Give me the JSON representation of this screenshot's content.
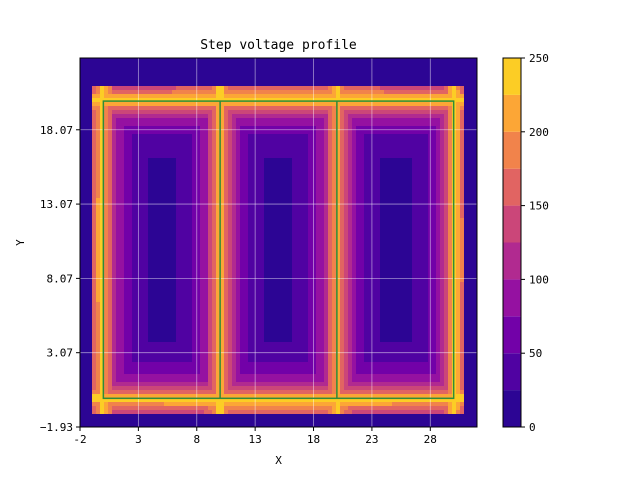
{
  "chart_data": {
    "type": "heatmap",
    "subtype": "filled-contour",
    "title": "Step voltage profile",
    "xlabel": "X",
    "ylabel": "Y",
    "xlim": [
      -2,
      32
    ],
    "ylim": [
      -1.93,
      22.9
    ],
    "x_ticks": [
      -2,
      3,
      8,
      13,
      18,
      23,
      28
    ],
    "y_ticks": [
      -1.93,
      3.07,
      8.07,
      13.07,
      18.07
    ],
    "y_tick_labels": [
      "-1.93",
      "3.07",
      "8.07",
      "13.07",
      "18.07"
    ],
    "grid": true,
    "colormap": "plasma",
    "colorbar": {
      "min": 0,
      "max": 250,
      "levels": [
        0,
        25,
        50,
        75,
        100,
        125,
        150,
        175,
        200,
        225,
        250
      ],
      "tick_values": [
        0,
        50,
        100,
        150,
        200,
        250
      ],
      "colors": [
        "#2c0594",
        "#5002a2",
        "#7201a8",
        "#9511a1",
        "#b12a90",
        "#cb4679",
        "#e16462",
        "#f1834b",
        "#fca636",
        "#fccd25"
      ]
    },
    "domain_x": [
      -1,
      31
    ],
    "domain_y": [
      -0.93,
      21.07
    ],
    "grid_conductors": {
      "color": "#2e8b3a",
      "outline_x": [
        0,
        30
      ],
      "outline_y": [
        0,
        20
      ],
      "vertical_lines_x": [
        10,
        20
      ]
    },
    "cell_boundaries_x": [
      0,
      10,
      20,
      30
    ],
    "cell_boundaries_y": [
      0,
      20
    ]
  }
}
